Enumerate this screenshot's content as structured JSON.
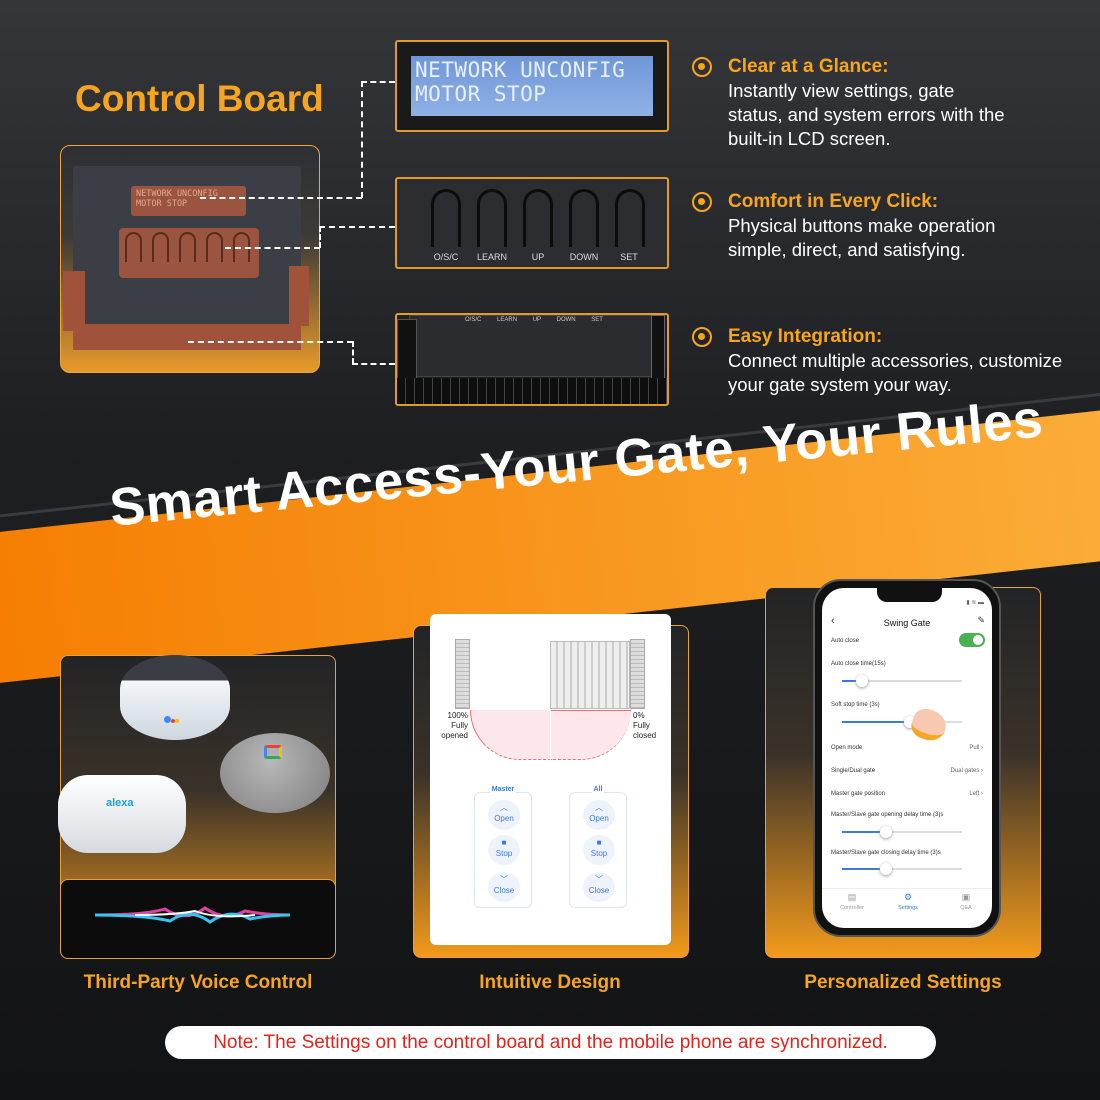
{
  "control_board": {
    "title": "Control Board",
    "lcd_lines": [
      "NETWORK UNCONFIG",
      "MOTOR STOP"
    ],
    "buttons": [
      "O/S/C",
      "LEARN",
      "UP",
      "DOWN",
      "SET"
    ]
  },
  "features": [
    {
      "icon": "target-bullet-icon",
      "heading": "Clear at a Glance:",
      "text": "Instantly view settings, gate status, and system errors with the built-in LCD screen."
    },
    {
      "icon": "target-bullet-icon",
      "heading": "Comfort in Every Click:",
      "text": "Physical buttons make operation simple, direct, and satisfying."
    },
    {
      "icon": "target-bullet-icon",
      "heading": "Easy Integration:",
      "text": "Connect multiple accessories, customize your gate system your way."
    }
  ],
  "banner": {
    "slogan": "Smart Access-Your Gate, Your Rules"
  },
  "cards": [
    {
      "caption": "Third-Party Voice Control",
      "device_logo": "alexa"
    },
    {
      "caption": "Intuitive Design"
    },
    {
      "caption": "Personalized Settings"
    }
  ],
  "gate_diagram": {
    "left_label": [
      "100%",
      "Fully",
      "opened"
    ],
    "right_label": [
      "0%",
      "Fully",
      "closed"
    ],
    "groups": [
      {
        "title": "Master",
        "buttons": [
          "Open",
          "Stop",
          "Close"
        ]
      },
      {
        "title": "All",
        "buttons": [
          "Open",
          "Stop",
          "Close"
        ]
      }
    ]
  },
  "phone": {
    "title": "Swing Gate",
    "auto_close": {
      "label": "Auto close",
      "enabled": true
    },
    "auto_close_time": {
      "label": "Auto close time(15s)",
      "level": 0.15
    },
    "soft_stop_time": {
      "label": "Soft stop time (3s)",
      "level": 0.55
    },
    "open_mode": {
      "label": "Open mode",
      "value": "Pull"
    },
    "single_dual": {
      "label": "Single/Dual gate",
      "value": "Dual gates"
    },
    "master_position": {
      "label": "Master gate position",
      "value": "Left"
    },
    "opening_delay": {
      "label": "Master/Slave gate opening delay time (3)s",
      "level": 0.35
    },
    "closing_delay": {
      "label": "Master/Slave gate closing delay time (3)s",
      "level": 0.35
    },
    "nav": [
      "Controller",
      "Settings",
      "Q&A"
    ],
    "active_nav": "Settings",
    "accent": "#3a7bd5",
    "toggle_color": "#4caf50"
  },
  "note": "Note: The Settings on the control board and the mobile phone are synchronized.",
  "colors": {
    "accent": "#f7a51f",
    "note_text": "#e2231a"
  }
}
